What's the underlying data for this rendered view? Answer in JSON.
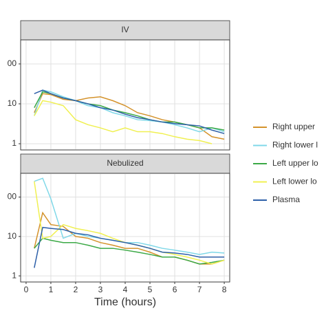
{
  "chart_data": [
    {
      "type": "line",
      "title": "IV",
      "log_y": true,
      "grid": true,
      "x": [
        0.33,
        0.67,
        1,
        1.5,
        2,
        2.5,
        3,
        3.5,
        4,
        4.5,
        5,
        5.5,
        6,
        6.5,
        7,
        7.5,
        8
      ],
      "xlim": [
        -0.22,
        8.22
      ],
      "ylim": [
        0.7,
        400
      ],
      "yticks": [
        1,
        10,
        {
          "value": 100,
          "label": "00"
        }
      ],
      "series": [
        {
          "name": "Right upper",
          "color": "#d4922a",
          "values": [
            6,
            18,
            17,
            13,
            12,
            14,
            15,
            12,
            9,
            6,
            5,
            4,
            3.5,
            3,
            2.5,
            1.5,
            1.3
          ]
        },
        {
          "name": "Right lower l",
          "color": "#7fd8e8",
          "values": [
            5,
            22,
            20,
            15,
            12,
            9,
            8,
            6,
            5,
            4,
            3.8,
            3.5,
            3,
            2.5,
            2,
            2.5,
            2
          ]
        },
        {
          "name": "Left upper lo",
          "color": "#3aa845",
          "values": [
            8,
            20,
            18,
            14,
            12,
            10,
            9,
            7,
            6,
            5,
            4,
            3.5,
            3.5,
            3,
            2.5,
            2.5,
            2.2
          ]
        },
        {
          "name": "Left lower lo",
          "color": "#f0f050",
          "values": [
            5,
            12,
            11,
            9,
            4,
            3,
            2.5,
            2,
            2.5,
            2,
            2,
            1.8,
            1.5,
            1.3,
            1.2,
            1,
            null
          ]
        },
        {
          "name": "Plasma",
          "color": "#2c5fa8",
          "values": [
            18,
            22,
            18,
            14,
            12,
            10,
            8,
            7,
            5.5,
            4.5,
            4,
            3.5,
            3.2,
            3,
            2.8,
            2.2,
            1.8
          ]
        }
      ]
    },
    {
      "type": "line",
      "title": "Nebulized",
      "log_y": true,
      "grid": true,
      "x_label": "Time (hours)",
      "x": [
        0.33,
        0.67,
        1,
        1.5,
        2,
        2.5,
        3,
        3.5,
        4,
        4.5,
        5,
        5.5,
        6,
        6.5,
        7,
        7.5,
        8
      ],
      "xlim": [
        -0.22,
        8.22
      ],
      "ylim": [
        0.7,
        400
      ],
      "xticks": [
        0,
        1,
        2,
        3,
        4,
        5,
        6,
        7,
        8
      ],
      "yticks": [
        1,
        10,
        {
          "value": 100,
          "label": "00"
        }
      ],
      "series": [
        {
          "name": "Right upper",
          "color": "#d4922a",
          "values": [
            5,
            40,
            20,
            18,
            10,
            9,
            7,
            6,
            5,
            5,
            4,
            3,
            3,
            2.5,
            2,
            2,
            2.5
          ]
        },
        {
          "name": "Right lower l",
          "color": "#7fd8e8",
          "values": [
            250,
            300,
            90,
            9,
            12,
            10,
            9,
            8,
            7,
            7,
            6,
            5,
            4.5,
            4,
            3.5,
            4,
            3.8
          ]
        },
        {
          "name": "Left upper lo",
          "color": "#3aa845",
          "values": [
            5,
            9,
            8,
            7,
            7,
            6,
            5,
            5,
            4.5,
            4,
            3.5,
            3,
            3,
            2.5,
            2,
            2.2,
            2.5
          ]
        },
        {
          "name": "Left lower lo",
          "color": "#f0f050",
          "values": [
            250,
            9,
            10,
            20,
            16,
            14,
            12,
            9,
            7,
            6,
            5,
            4,
            3.5,
            3,
            2.5,
            2,
            2.5
          ]
        },
        {
          "name": "Plasma",
          "color": "#2c5fa8",
          "values": [
            1.6,
            17,
            16,
            15,
            12,
            11,
            9,
            8,
            7,
            6,
            5,
            4,
            3.8,
            3.5,
            3,
            3,
            3
          ]
        }
      ]
    }
  ]
}
